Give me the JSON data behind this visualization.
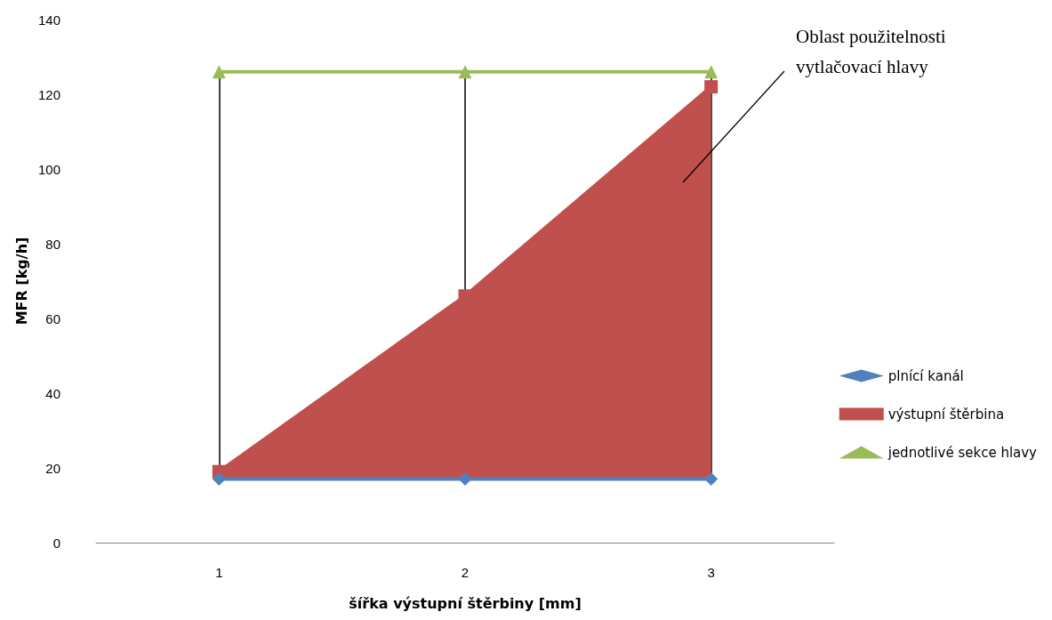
{
  "chart_data": {
    "type": "line",
    "xlabel": "šířka výstupní štěrbiny [mm]",
    "ylabel": "MFR [kg/h]",
    "categories": [
      "1",
      "2",
      "3"
    ],
    "series": [
      {
        "name": "plnící kanál",
        "color": "#4f81bd",
        "marker": "diamond",
        "values": [
          17,
          17,
          17
        ]
      },
      {
        "name": "výstupní štěrbina",
        "color": "#c0504d",
        "marker": "square",
        "type": "area",
        "values": [
          19,
          66,
          122
        ]
      },
      {
        "name": "jednotlivé sekce hlavy",
        "color": "#9bbb59",
        "marker": "triangle",
        "values": [
          126,
          126,
          126
        ]
      }
    ],
    "ylim": [
      0,
      140
    ],
    "yticks": [
      0,
      20,
      40,
      60,
      80,
      100,
      120,
      140
    ],
    "grid": false,
    "legend": "right",
    "ref_lines": [
      {
        "axis": "x",
        "value": "1",
        "color": "#000000"
      },
      {
        "axis": "x",
        "value": "2",
        "color": "#000000"
      },
      {
        "axis": "x",
        "value": "3",
        "color": "#000000"
      }
    ],
    "annotations": [
      "Oblast použitelnosti vytlačovací hlavy"
    ]
  }
}
